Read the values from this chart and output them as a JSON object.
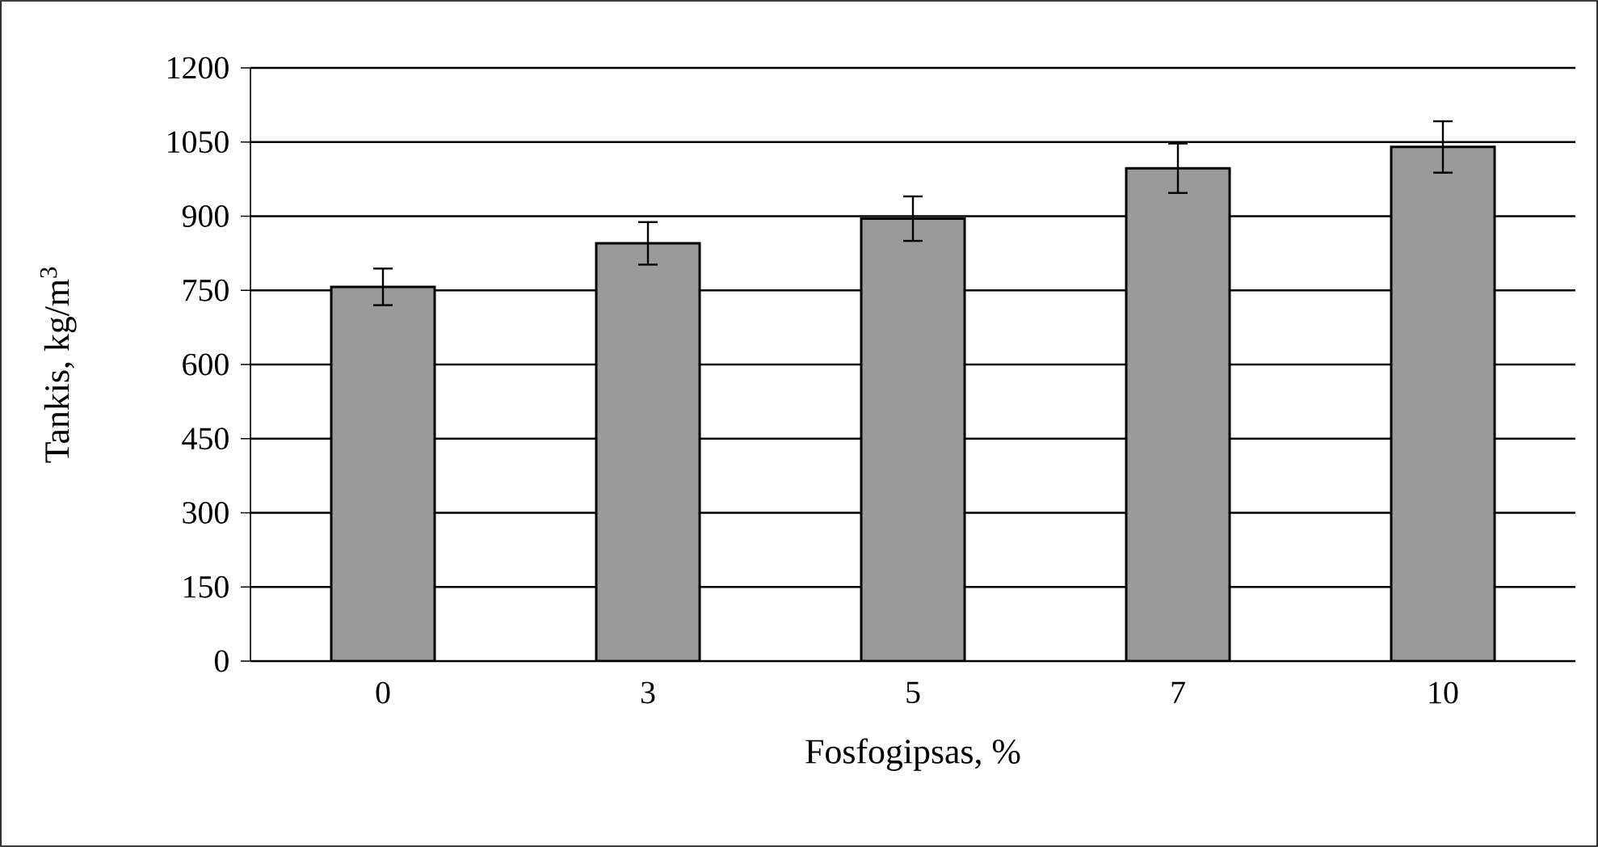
{
  "chart_data": {
    "type": "bar",
    "xlabel": "Fosfogipsas, %",
    "ylabel": "Tankis, kg/m$^{3}$",
    "categories": [
      "0",
      "3",
      "5",
      "7",
      "10"
    ],
    "values": [
      757,
      845,
      895,
      997,
      1040
    ],
    "errors": [
      37,
      43,
      45,
      50,
      52
    ],
    "color": "#9a9a9a",
    "ylim": [
      0,
      1200
    ],
    "yticks": [
      0,
      150,
      300,
      450,
      600,
      750,
      900,
      1050,
      1200
    ],
    "grid": "y"
  }
}
